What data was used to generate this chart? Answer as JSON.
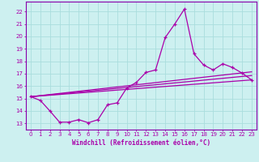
{
  "xlabel": "Windchill (Refroidissement éolien,°C)",
  "background_color": "#cdf0f0",
  "grid_color": "#aadddd",
  "line_color": "#aa00aa",
  "spine_color": "#8800aa",
  "xlim": [
    -0.5,
    23.5
  ],
  "ylim": [
    12.5,
    22.8
  ],
  "xticks": [
    0,
    1,
    2,
    3,
    4,
    5,
    6,
    7,
    8,
    9,
    10,
    11,
    12,
    13,
    14,
    15,
    16,
    17,
    18,
    19,
    20,
    21,
    22,
    23
  ],
  "yticks": [
    13,
    14,
    15,
    16,
    17,
    18,
    19,
    20,
    21,
    22
  ],
  "line1_x": [
    0,
    1,
    2,
    3,
    4,
    5,
    6,
    7,
    8,
    9,
    10,
    11,
    12,
    13,
    14,
    15,
    16,
    17,
    18,
    19,
    20,
    21,
    22,
    23
  ],
  "line1_y": [
    15.15,
    14.85,
    14.0,
    13.1,
    13.1,
    13.3,
    13.05,
    13.3,
    14.5,
    14.65,
    15.85,
    16.3,
    17.1,
    17.3,
    19.9,
    21.0,
    22.2,
    18.6,
    17.7,
    17.3,
    17.8,
    17.5,
    17.05,
    16.5
  ],
  "line2_x": [
    0,
    23
  ],
  "line2_y": [
    15.15,
    16.5
  ],
  "line3_x": [
    0,
    23
  ],
  "line3_y": [
    15.15,
    17.15
  ],
  "line4_x": [
    0,
    23
  ],
  "line4_y": [
    15.15,
    16.85
  ],
  "tick_fontsize": 5.0,
  "xlabel_fontsize": 5.5
}
